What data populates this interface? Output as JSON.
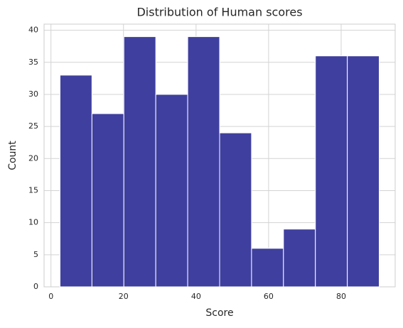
{
  "chart_data": {
    "type": "histogram",
    "title": "Distribution of Human scores",
    "x_label": "Score",
    "y_label": "Count",
    "bins": [
      2.5,
      11.3,
      20.1,
      28.9,
      37.7,
      46.5,
      55.3,
      64.1,
      72.9,
      81.7,
      90.5
    ],
    "values": [
      33,
      27,
      39,
      30,
      39,
      24,
      6,
      9,
      36,
      36
    ],
    "color": "#3f3f9f",
    "xlim": [
      -1.9,
      94.9
    ],
    "xticks": [
      0,
      20,
      40,
      60,
      80
    ],
    "ylim": [
      0,
      40.95
    ],
    "yticks": [
      0,
      5,
      10,
      15,
      20,
      25,
      30,
      35,
      40
    ],
    "grid": true
  }
}
